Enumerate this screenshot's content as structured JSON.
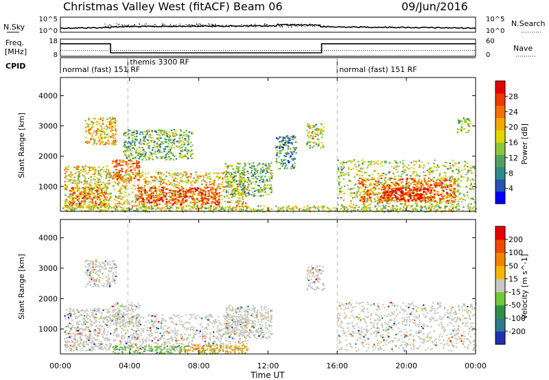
{
  "header": {
    "station": "Christmas Valley West (fitACF)",
    "beam": "Beam 06",
    "date": "09/Jun/2016"
  },
  "time_axis": {
    "label": "Time UT",
    "ticks": [
      "00:00",
      "04:00",
      "08:00",
      "12:00",
      "16:00",
      "20:00",
      "00:00"
    ],
    "range_hours": [
      0,
      24
    ]
  },
  "nsky_panel": {
    "label": "N.Sky",
    "right_label": "N.Search",
    "left_ticks": [
      "10^5",
      "10^0"
    ],
    "right_ticks": [
      "10^5",
      "10^0"
    ]
  },
  "freq_panel": {
    "label_line1": "Freq.",
    "label_line2": "[MHz]",
    "left_ticks": [
      "18",
      "8"
    ],
    "right_label": "Nave",
    "right_ticks": [
      "60",
      "0"
    ],
    "freq_segments": [
      {
        "start_h": 0.0,
        "end_h": 2.9,
        "mhz": 15.3
      },
      {
        "start_h": 2.9,
        "end_h": 15.1,
        "mhz": 10.0
      },
      {
        "start_h": 15.1,
        "end_h": 24.0,
        "mhz": 15.3
      }
    ],
    "nave_level": 20
  },
  "cpid_row": {
    "label": "CPID",
    "modes": [
      {
        "label": "normal (fast) 151 RF",
        "start_h": 0.0
      },
      {
        "label": "themis 3300 RF",
        "start_h": 3.9
      },
      {
        "label": "normal (fast) 151 RF",
        "start_h": 16.0
      }
    ]
  },
  "chart_data": [
    {
      "type": "heatmap",
      "title": "",
      "quantity": "Power",
      "ylabel": "Slant Range [km]",
      "xlabel": "",
      "ylim": [
        180,
        4600
      ],
      "yticks": [
        "1000",
        "2000",
        "3000",
        "4000"
      ],
      "colorbar_label": "Power [dB]",
      "colorbar_ticks": [
        "28",
        "24",
        "20",
        "16",
        "12",
        "8",
        "4"
      ],
      "colorbar_colors": [
        "#0000ff",
        "#2454b4",
        "#2e8b8b",
        "#55a060",
        "#8cc63c",
        "#dcd800",
        "#f5a800",
        "#f07000",
        "#ec3a00",
        "#e60000"
      ],
      "regions": [
        {
          "t0": 0.2,
          "t1": 2.9,
          "r0": 300,
          "r1": 1700,
          "level": 0.55
        },
        {
          "t0": 0.5,
          "t1": 2.6,
          "r0": 400,
          "r1": 1000,
          "level": 0.75
        },
        {
          "t0": 1.4,
          "t1": 3.2,
          "r0": 2400,
          "r1": 3300,
          "level": 0.6
        },
        {
          "t0": 2.9,
          "t1": 4.6,
          "r0": 1200,
          "r1": 1900,
          "level": 0.8
        },
        {
          "t0": 3.6,
          "t1": 7.6,
          "r0": 1900,
          "r1": 2900,
          "level": 0.4
        },
        {
          "t0": 3.0,
          "t1": 10.8,
          "r0": 300,
          "r1": 1500,
          "level": 0.6
        },
        {
          "t0": 4.4,
          "t1": 9.2,
          "r0": 400,
          "r1": 1000,
          "level": 0.85
        },
        {
          "t0": 9.5,
          "t1": 12.2,
          "r0": 700,
          "r1": 1800,
          "level": 0.4
        },
        {
          "t0": 12.4,
          "t1": 13.6,
          "r0": 1600,
          "r1": 2700,
          "level": 0.3
        },
        {
          "t0": 14.2,
          "t1": 15.2,
          "r0": 2300,
          "r1": 3100,
          "level": 0.5
        },
        {
          "t0": 16.0,
          "t1": 24.0,
          "r0": 300,
          "r1": 1900,
          "level": 0.5
        },
        {
          "t0": 17.2,
          "t1": 22.8,
          "r0": 500,
          "r1": 1300,
          "level": 0.75
        },
        {
          "t0": 18.6,
          "t1": 21.6,
          "r0": 550,
          "r1": 1000,
          "level": 0.95
        },
        {
          "t0": 22.9,
          "t1": 23.7,
          "r0": 2800,
          "r1": 3300,
          "level": 0.45
        },
        {
          "t0": 0.0,
          "t1": 24.0,
          "r0": 180,
          "r1": 380,
          "level": 0.5
        }
      ]
    },
    {
      "type": "heatmap",
      "title": "",
      "quantity": "Velocity",
      "ylabel": "Slant Range [km]",
      "xlabel": "Time UT",
      "ylim": [
        180,
        4600
      ],
      "yticks": [
        "1000",
        "2000",
        "3000",
        "4000"
      ],
      "colorbar_label": "Velocity [m s^-1]",
      "colorbar_ticks": [
        "200",
        "100",
        "50",
        "15",
        "-15",
        "-50",
        "-100",
        "-200"
      ],
      "colorbar_colors": [
        "#2030b0",
        "#2e7a8c",
        "#2f8f48",
        "#74c63c",
        "#c8c8c0",
        "#f2b800",
        "#f08400",
        "#ec4a00",
        "#e60000"
      ],
      "regions": [
        {
          "t0": 0.2,
          "t1": 2.9,
          "r0": 300,
          "r1": 1700,
          "level": 0.5
        },
        {
          "t0": 1.4,
          "t1": 3.2,
          "r0": 2400,
          "r1": 3300,
          "level": 0.5
        },
        {
          "t0": 2.9,
          "t1": 4.6,
          "r0": 1200,
          "r1": 1900,
          "level": 0.5
        },
        {
          "t0": 3.0,
          "t1": 10.8,
          "r0": 300,
          "r1": 1500,
          "level": 0.5
        },
        {
          "t0": 9.5,
          "t1": 12.2,
          "r0": 700,
          "r1": 1800,
          "level": 0.5
        },
        {
          "t0": 16.0,
          "t1": 24.0,
          "r0": 300,
          "r1": 1900,
          "level": 0.5
        },
        {
          "t0": 7.2,
          "t1": 10.8,
          "r0": 200,
          "r1": 500,
          "level": 0.78
        },
        {
          "t0": 3.0,
          "t1": 7.2,
          "r0": 220,
          "r1": 480,
          "level": 0.3
        },
        {
          "t0": 14.2,
          "t1": 15.2,
          "r0": 2300,
          "r1": 3100,
          "level": 0.35
        }
      ]
    }
  ]
}
